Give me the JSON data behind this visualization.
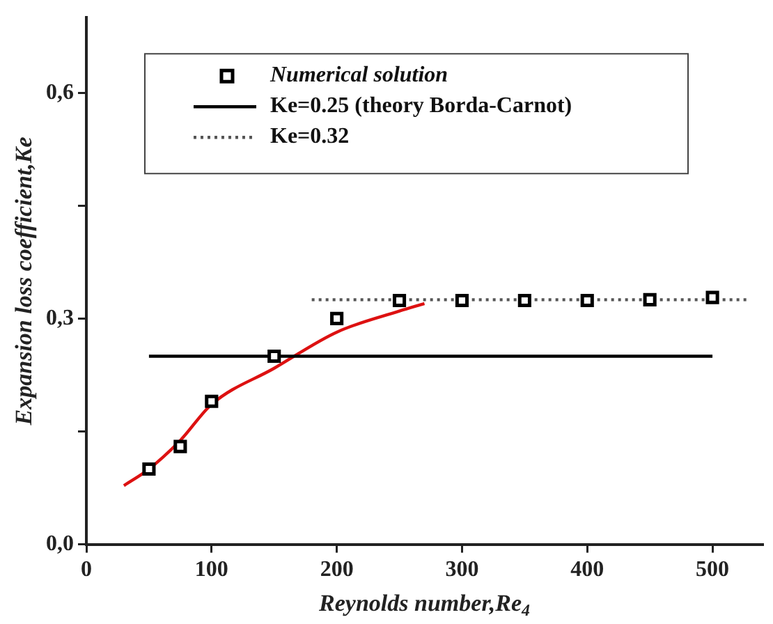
{
  "chart_data": {
    "type": "scatter",
    "xlabel": "Reynolds number,Re$_{4}$",
    "ylabel": "Expansion loss coefficient,Ke",
    "xlim": [
      0,
      540
    ],
    "xticks": [
      0,
      100,
      200,
      300,
      400,
      500
    ],
    "ylim": [
      0,
      0.7
    ],
    "yticks": [
      {
        "value": 0,
        "label": "0,0"
      },
      {
        "value": 0.15,
        "label": null
      },
      {
        "value": 0.3,
        "label": "0,3"
      },
      {
        "value": 0.45,
        "label": null
      },
      {
        "value": 0.6,
        "label": "0,6"
      }
    ],
    "grid": false,
    "legend": "top",
    "series": [
      {
        "name": "Numerical solution",
        "marker": "square",
        "color": "#000000",
        "x": [
          50,
          75,
          100,
          150,
          200,
          250,
          300,
          350,
          400,
          450,
          500
        ],
        "values": [
          0.1,
          0.13,
          0.19,
          0.25,
          0.3,
          0.324,
          0.324,
          0.324,
          0.324,
          0.325,
          0.328
        ]
      },
      {
        "name": "Ke=0.25 (theory Borda-Carnot)",
        "type": "line",
        "line_style": "solid",
        "color": "#000000",
        "x": [
          50,
          500
        ],
        "values": [
          0.25,
          0.25
        ]
      },
      {
        "name": "Ke=0.32",
        "type": "line",
        "line_style": "dotted",
        "color": "#555555",
        "x": [
          180,
          530
        ],
        "values": [
          0.325,
          0.325
        ]
      },
      {
        "type": "line",
        "line_style": "solid",
        "color": "#dd1111",
        "x": [
          30,
          50,
          75,
          100,
          150,
          200,
          250,
          270
        ],
        "values": [
          0.078,
          0.1,
          0.138,
          0.186,
          0.234,
          0.282,
          0.31,
          0.32
        ]
      }
    ]
  }
}
